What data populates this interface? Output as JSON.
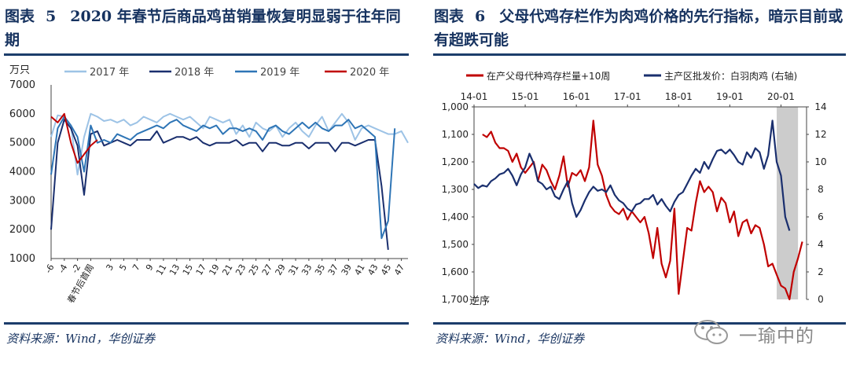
{
  "left": {
    "fig_label": "图表",
    "fig_num": "5",
    "title": "2020 年春节后商品鸡苗销量恢复明显弱于往年同期",
    "source": "资料来源：Wind，华创证券"
  },
  "right": {
    "fig_label": "图表",
    "fig_num": "6",
    "title": "父母代鸡存栏作为肉鸡价格的先行指标，暗示目前或有超跌可能",
    "source": "资料来源：Wind，华创证券"
  },
  "watermark": {
    "text": "一瑜中的",
    "icon": "wechat-icon"
  },
  "chart_data": [
    {
      "type": "line",
      "unit_label": "万只",
      "ylim": [
        1000,
        7000
      ],
      "yticks": [
        1000,
        2000,
        3000,
        4000,
        5000,
        6000,
        7000
      ],
      "xlim": [
        -6,
        48
      ],
      "xticks": [
        {
          "x": -6,
          "label": "-6"
        },
        {
          "x": -4,
          "label": "-4"
        },
        {
          "x": -2,
          "label": "-2"
        },
        {
          "x": 0,
          "label": "春节后首周"
        },
        {
          "x": 3,
          "label": "3"
        },
        {
          "x": 5,
          "label": "5"
        },
        {
          "x": 7,
          "label": "7"
        },
        {
          "x": 9,
          "label": "9"
        },
        {
          "x": 11,
          "label": "11"
        },
        {
          "x": 13,
          "label": "13"
        },
        {
          "x": 15,
          "label": "15"
        },
        {
          "x": 17,
          "label": "17"
        },
        {
          "x": 19,
          "label": "19"
        },
        {
          "x": 21,
          "label": "21"
        },
        {
          "x": 23,
          "label": "23"
        },
        {
          "x": 25,
          "label": "25"
        },
        {
          "x": 27,
          "label": "27"
        },
        {
          "x": 29,
          "label": "29"
        },
        {
          "x": 31,
          "label": "31"
        },
        {
          "x": 33,
          "label": "33"
        },
        {
          "x": 35,
          "label": "35"
        },
        {
          "x": 37,
          "label": "37"
        },
        {
          "x": 39,
          "label": "39"
        },
        {
          "x": 41,
          "label": "41"
        },
        {
          "x": 43,
          "label": "43"
        },
        {
          "x": 45,
          "label": "45"
        },
        {
          "x": 47,
          "label": "47"
        }
      ],
      "legend_position": "top",
      "grid": false,
      "series": [
        {
          "name": "2017 年",
          "color": "#9dc3e6",
          "x": [
            -6,
            -5,
            -4,
            -3,
            -2,
            -1,
            0,
            1,
            2,
            3,
            4,
            5,
            6,
            7,
            8,
            9,
            10,
            11,
            12,
            13,
            14,
            15,
            16,
            17,
            18,
            19,
            20,
            21,
            22,
            23,
            24,
            25,
            26,
            27,
            28,
            29,
            30,
            31,
            32,
            33,
            34,
            35,
            36,
            37,
            38,
            39,
            40,
            41,
            42,
            43,
            44,
            45,
            46,
            47,
            48
          ],
          "values": [
            5200,
            5950,
            5900,
            5600,
            3900,
            5200,
            6000,
            5900,
            5750,
            5800,
            5700,
            5800,
            5600,
            5700,
            5900,
            5800,
            5700,
            5900,
            6000,
            5900,
            5800,
            5900,
            5700,
            5500,
            5900,
            5800,
            5700,
            5800,
            5300,
            5600,
            5200,
            5700,
            5500,
            5400,
            5600,
            5200,
            5500,
            5700,
            5400,
            5200,
            5600,
            5900,
            5400,
            5700,
            6000,
            5700,
            5100,
            5500,
            5600,
            5500,
            5400,
            5300,
            5300,
            5400,
            5000
          ]
        },
        {
          "name": "2018 年",
          "color": "#1a2f6e",
          "x": [
            -6,
            -5,
            -4,
            -3,
            -2,
            -1,
            0,
            1,
            2,
            3,
            4,
            5,
            6,
            7,
            8,
            9,
            10,
            11,
            12,
            13,
            14,
            15,
            16,
            17,
            18,
            19,
            20,
            21,
            22,
            23,
            24,
            25,
            26,
            27,
            28,
            29,
            30,
            31,
            32,
            33,
            34,
            35,
            36,
            37,
            38,
            39,
            40,
            41,
            42,
            43,
            44,
            45
          ],
          "values": [
            2000,
            5000,
            5800,
            5500,
            4900,
            3200,
            5300,
            5400,
            4900,
            5000,
            5100,
            5000,
            4900,
            5100,
            5100,
            5100,
            5400,
            5000,
            5100,
            5200,
            5200,
            5100,
            5200,
            5000,
            4900,
            5000,
            5000,
            5000,
            5100,
            4900,
            5000,
            5000,
            4700,
            5000,
            5000,
            4900,
            4900,
            5000,
            5000,
            4800,
            5000,
            5000,
            5000,
            4700,
            5000,
            5000,
            4900,
            5000,
            5100,
            5100,
            3500,
            1300
          ]
        },
        {
          "name": "2019 年",
          "color": "#2e75b6",
          "x": [
            -6,
            -5,
            -4,
            -3,
            -2,
            -1,
            0,
            1,
            2,
            3,
            4,
            5,
            6,
            7,
            8,
            9,
            10,
            11,
            12,
            13,
            14,
            15,
            16,
            17,
            18,
            19,
            20,
            21,
            22,
            23,
            24,
            25,
            26,
            27,
            28,
            29,
            30,
            31,
            32,
            33,
            34,
            35,
            36,
            37,
            38,
            39,
            40,
            41,
            42,
            43,
            44,
            45,
            46
          ],
          "values": [
            3900,
            5500,
            5900,
            5600,
            5200,
            4000,
            5600,
            5000,
            5100,
            5000,
            5300,
            5200,
            5100,
            5300,
            5400,
            5500,
            5600,
            5500,
            5700,
            5800,
            5600,
            5500,
            5400,
            5600,
            5500,
            5600,
            5300,
            5500,
            5500,
            5400,
            5500,
            5400,
            5100,
            5500,
            5600,
            5400,
            5300,
            5500,
            5700,
            5500,
            5700,
            5500,
            5400,
            5600,
            5600,
            5800,
            5500,
            5600,
            5400,
            5200,
            1700,
            2300,
            5500
          ]
        },
        {
          "name": "2020 年",
          "color": "#c00000",
          "x": [
            -6,
            -5,
            -4,
            -3,
            -2,
            -1,
            0,
            1
          ],
          "values": [
            5900,
            5700,
            6000,
            5000,
            4300,
            4600,
            4900,
            5100
          ]
        }
      ]
    },
    {
      "type": "line",
      "x_axis": "time",
      "xlim": [
        "2014-01",
        "2020-07"
      ],
      "xticks": [
        "14-01",
        "15-01",
        "16-01",
        "17-01",
        "18-01",
        "19-01",
        "20-01"
      ],
      "left_axis": {
        "ylim": [
          1000,
          1700
        ],
        "inverted": true,
        "yticks": [
          1000,
          1100,
          1200,
          1300,
          1400,
          1500,
          1600,
          1700
        ],
        "note": "逆序"
      },
      "right_axis": {
        "ylim": [
          0,
          14
        ],
        "yticks": [
          0,
          2,
          4,
          6,
          8,
          10,
          12,
          14
        ]
      },
      "shaded_region": {
        "from": "2019-12",
        "to": "2020-05",
        "color": "#cccccc"
      },
      "legend_position": "top",
      "grid": false,
      "series": [
        {
          "name": "在产父母代种鸡存栏量+10周",
          "axis": "left",
          "color": "#c00000",
          "x": [
            "2014-03",
            "2014-04",
            "2014-05",
            "2014-06",
            "2014-07",
            "2014-08",
            "2014-09",
            "2014-10",
            "2014-11",
            "2014-12",
            "2015-01",
            "2015-02",
            "2015-03",
            "2015-04",
            "2015-05",
            "2015-06",
            "2015-07",
            "2015-08",
            "2015-09",
            "2015-10",
            "2015-11",
            "2015-12",
            "2016-01",
            "2016-02",
            "2016-03",
            "2016-04",
            "2016-05",
            "2016-06",
            "2016-07",
            "2016-08",
            "2016-09",
            "2016-10",
            "2016-11",
            "2016-12",
            "2017-01",
            "2017-02",
            "2017-03",
            "2017-04",
            "2017-05",
            "2017-06",
            "2017-07",
            "2017-08",
            "2017-09",
            "2017-10",
            "2017-11",
            "2017-12",
            "2018-01",
            "2018-02",
            "2018-03",
            "2018-04",
            "2018-05",
            "2018-06",
            "2018-07",
            "2018-08",
            "2018-09",
            "2018-10",
            "2018-11",
            "2018-12",
            "2019-01",
            "2019-02",
            "2019-03",
            "2019-04",
            "2019-05",
            "2019-06",
            "2019-07",
            "2019-08",
            "2019-09",
            "2019-10",
            "2019-11",
            "2019-12",
            "2020-01",
            "2020-02",
            "2020-03",
            "2020-04",
            "2020-05",
            "2020-06"
          ],
          "values": [
            1100,
            1110,
            1090,
            1130,
            1150,
            1150,
            1160,
            1200,
            1170,
            1220,
            1240,
            1220,
            1200,
            1270,
            1210,
            1230,
            1270,
            1300,
            1250,
            1180,
            1290,
            1240,
            1250,
            1230,
            1270,
            1220,
            1050,
            1210,
            1250,
            1320,
            1360,
            1380,
            1390,
            1370,
            1410,
            1380,
            1400,
            1420,
            1400,
            1460,
            1550,
            1440,
            1570,
            1620,
            1560,
            1370,
            1680,
            1560,
            1440,
            1450,
            1350,
            1270,
            1310,
            1290,
            1310,
            1380,
            1330,
            1350,
            1420,
            1380,
            1470,
            1420,
            1410,
            1460,
            1430,
            1440,
            1500,
            1580,
            1570,
            1610,
            1650,
            1660,
            1700,
            1600,
            1550,
            1490
          ]
        },
        {
          "name": "主产区批发价：白羽肉鸡 (右轴)",
          "axis": "right",
          "color": "#1a2f6e",
          "x": [
            "2014-01",
            "2014-02",
            "2014-03",
            "2014-04",
            "2014-05",
            "2014-06",
            "2014-07",
            "2014-08",
            "2014-09",
            "2014-10",
            "2014-11",
            "2014-12",
            "2015-01",
            "2015-02",
            "2015-03",
            "2015-04",
            "2015-05",
            "2015-06",
            "2015-07",
            "2015-08",
            "2015-09",
            "2015-10",
            "2015-11",
            "2015-12",
            "2016-01",
            "2016-02",
            "2016-03",
            "2016-04",
            "2016-05",
            "2016-06",
            "2016-07",
            "2016-08",
            "2016-09",
            "2016-10",
            "2016-11",
            "2016-12",
            "2017-01",
            "2017-02",
            "2017-03",
            "2017-04",
            "2017-05",
            "2017-06",
            "2017-07",
            "2017-08",
            "2017-09",
            "2017-10",
            "2017-11",
            "2017-12",
            "2018-01",
            "2018-02",
            "2018-03",
            "2018-04",
            "2018-05",
            "2018-06",
            "2018-07",
            "2018-08",
            "2018-09",
            "2018-10",
            "2018-11",
            "2018-12",
            "2019-01",
            "2019-02",
            "2019-03",
            "2019-04",
            "2019-05",
            "2019-06",
            "2019-07",
            "2019-08",
            "2019-09",
            "2019-10",
            "2019-11",
            "2019-12",
            "2020-01",
            "2020-02",
            "2020-03"
          ],
          "values": [
            8.4,
            8.1,
            8.3,
            8.2,
            8.6,
            8.8,
            9.1,
            9.2,
            9.5,
            9.0,
            8.3,
            9.1,
            9.6,
            10.6,
            9.9,
            8.6,
            8.4,
            8.0,
            8.2,
            7.5,
            7.3,
            8.0,
            8.6,
            7.0,
            6.0,
            6.5,
            7.2,
            7.8,
            8.2,
            7.9,
            8.0,
            7.8,
            8.3,
            7.6,
            7.2,
            7.0,
            6.6,
            6.4,
            6.9,
            7.0,
            7.3,
            7.3,
            7.6,
            6.9,
            7.3,
            6.8,
            6.4,
            7.1,
            7.6,
            7.8,
            8.4,
            9.0,
            9.5,
            9.2,
            10.0,
            9.5,
            10.2,
            10.8,
            10.9,
            10.6,
            10.9,
            10.5,
            10.0,
            9.8,
            10.7,
            10.3,
            11.0,
            10.7,
            9.5,
            10.5,
            13.0,
            10.0,
            9.0,
            6.0,
            5.0
          ]
        }
      ]
    }
  ]
}
